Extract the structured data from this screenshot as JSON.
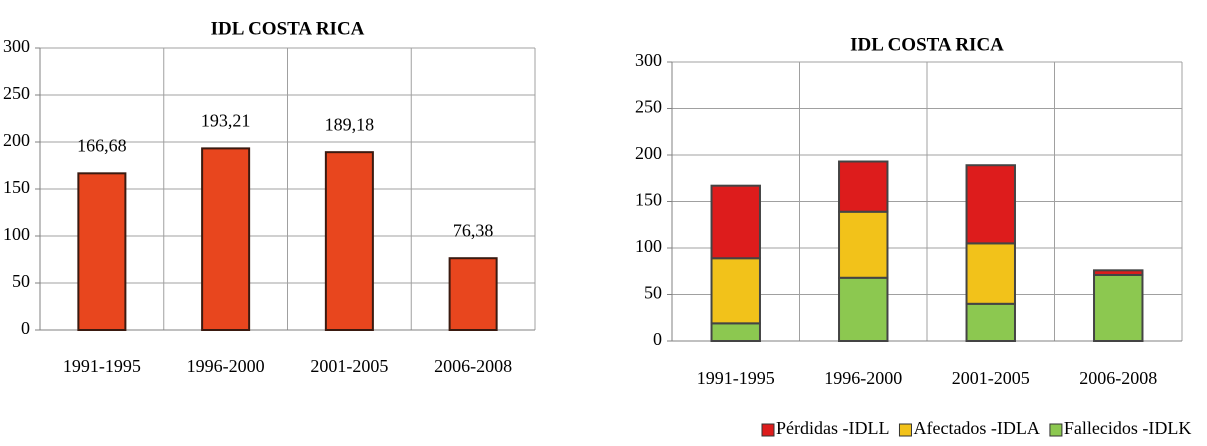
{
  "chart_data": [
    {
      "type": "bar",
      "title": "IDL COSTA RICA",
      "categories": [
        "1991-1995",
        "1996-2000",
        "2001-2005",
        "2006-2008"
      ],
      "values": [
        166.68,
        193.21,
        189.18,
        76.38
      ],
      "value_labels": [
        "166,68",
        "193,21",
        "189,18",
        "76,38"
      ],
      "color": "#e8461e",
      "ylim": [
        0,
        300
      ],
      "yticks": [
        0,
        50,
        100,
        150,
        200,
        250,
        300
      ],
      "grid": true
    },
    {
      "type": "stacked_bar",
      "title": "IDL COSTA RICA",
      "categories": [
        "1991-1995",
        "1996-2000",
        "2001-2005",
        "2006-2008"
      ],
      "series": [
        {
          "name": "Pérdidas -IDLL",
          "color": "#dd1c1c",
          "values": [
            78,
            54,
            84,
            5
          ]
        },
        {
          "name": "Afectados -IDLA",
          "color": "#f2c21a",
          "values": [
            70,
            71,
            65,
            0
          ]
        },
        {
          "name": "Fallecidos -IDLK",
          "color": "#8cc850",
          "values": [
            19,
            68,
            40,
            71
          ]
        }
      ],
      "ylim": [
        0,
        300
      ],
      "yticks": [
        0,
        50,
        100,
        150,
        200,
        250,
        300
      ],
      "grid": true,
      "legend": "bottom"
    }
  ]
}
